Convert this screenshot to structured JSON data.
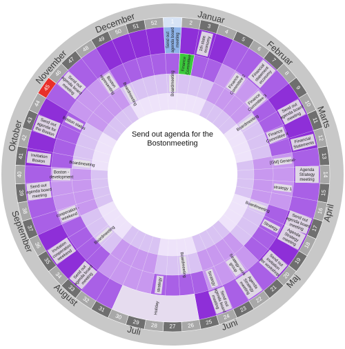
{
  "center": {
    "line1": "Send out agenda for the",
    "line2": "Bostonmeeting"
  },
  "colors": {
    "background": "#ffffff",
    "outer_ring": "#c8c8c8",
    "week_dark": "#6f6f6f",
    "week_light": "#a8a8a8",
    "week_highlight": "#e8302a",
    "week_current": "#d7e3f5",
    "ring_purple_dark": "#8e2fd8",
    "ring_purple_mid": "#a960e6",
    "ring_purple_light": "#c898ef",
    "ring_lavender": "#d9c3f3",
    "ring_pale": "#eee3fa",
    "label_bg": "#e4e4e4",
    "green": "#3cc93c",
    "blue": "#8fb4e9",
    "holiday": "#e6dcef"
  },
  "months": [
    {
      "name": "Januar",
      "center_week": 3
    },
    {
      "name": "Februar",
      "center_week": 7
    },
    {
      "name": "Marts",
      "center_week": 11
    },
    {
      "name": "April",
      "center_week": 16
    },
    {
      "name": "Maj",
      "center_week": 20
    },
    {
      "name": "Juni",
      "center_week": 24
    },
    {
      "name": "Juli",
      "center_week": 29
    },
    {
      "name": "August",
      "center_week": 33
    },
    {
      "name": "September",
      "center_week": 37
    },
    {
      "name": "Oktober",
      "center_week": 42
    },
    {
      "name": "November",
      "center_week": 46
    },
    {
      "name": "December",
      "center_week": 50
    }
  ],
  "weeks": [
    "1",
    "2",
    "3",
    "4",
    "5",
    "6",
    "7",
    "8",
    "9",
    "10",
    "11",
    "12",
    "13",
    "14",
    "15",
    "16",
    "17",
    "18",
    "19",
    "20",
    "21",
    "22",
    "23",
    "24",
    "25",
    "26",
    "27",
    "28",
    "29",
    "30",
    "31",
    "32",
    "33",
    "34",
    "35",
    "36",
    "37",
    "38",
    "39",
    "40",
    "41",
    "42",
    "43",
    "44",
    "45",
    "46",
    "47",
    "48",
    "49",
    "50",
    "51",
    "52"
  ],
  "highlight_week": 45,
  "current_week": 1,
  "rings": [
    {
      "name": "ring-1",
      "events": [
        {
          "week": 1,
          "text": "Send out agenda board meeting",
          "color": "blue"
        },
        {
          "week": 3,
          "text": "1th state economy"
        },
        {
          "week": 7,
          "text": "Financial statement economy"
        },
        {
          "week": 10,
          "text": "Send out agenda board meeting"
        },
        {
          "week": 12,
          "text": "Financial Statements"
        },
        {
          "week": 14,
          "text": "Agenda Strategy meeting"
        },
        {
          "week": 17,
          "text": "Send out agenda board meeting"
        },
        {
          "week": 18,
          "text": "Agenda Strategy meeting"
        },
        {
          "week": 20,
          "text": "Send out invitation for workshop"
        },
        {
          "week": 22,
          "text": "Agenda Strategy meeting"
        },
        {
          "week": 24,
          "text": "Send out agenda board meeting"
        },
        {
          "week": 26,
          "text": "Holiday",
          "span": 5,
          "color": "holiday"
        },
        {
          "week": 33,
          "text": "Send out agenda board meeting"
        },
        {
          "week": 35,
          "text": "Invitation cooperation weekend"
        },
        {
          "week": 39,
          "text": "Send out agenda board meeting"
        },
        {
          "week": 41,
          "text": "Invitation Boston"
        },
        {
          "week": 43,
          "text": "Send out agenda for the Boston"
        },
        {
          "week": 46,
          "text": "Send out agenda board meeting"
        }
      ]
    },
    {
      "name": "ring-2",
      "events": [
        {
          "week": 2,
          "text": "Finance Committee",
          "color": "green"
        },
        {
          "week": 6,
          "text": "Finance Committee 2"
        },
        {
          "week": 8,
          "text": "Finance Committee 3"
        },
        {
          "week": 11,
          "text": "Finance Committee 4"
        },
        {
          "week": 13,
          "text": "[GM] General-"
        },
        {
          "week": 15,
          "text": "strategy 1"
        },
        {
          "week": 18,
          "text": "Strategy"
        },
        {
          "week": 22,
          "text": "Strategy-work group"
        },
        {
          "week": 24,
          "text": "Strategy"
        },
        {
          "week": 28,
          "text": "strategy"
        },
        {
          "week": 37,
          "text": "cooperation - weekend"
        },
        {
          "week": 40,
          "text": "Boston - development"
        },
        {
          "week": 44,
          "text": "Boston status"
        },
        {
          "week": 48,
          "text": "Boston representing"
        }
      ]
    },
    {
      "name": "ring-3",
      "events": [
        {
          "week": 1,
          "text": "Boardmeeting"
        },
        {
          "week": 9,
          "text": "Boardmeeting"
        },
        {
          "week": 17,
          "text": "Boardmeeting"
        },
        {
          "week": 26,
          "text": "Boardmeeting"
        },
        {
          "week": 34,
          "text": "Boardmeeting"
        },
        {
          "week": 41,
          "text": "Boardmeeting"
        },
        {
          "week": 49,
          "text": "Boardmeeting"
        }
      ]
    }
  ]
}
